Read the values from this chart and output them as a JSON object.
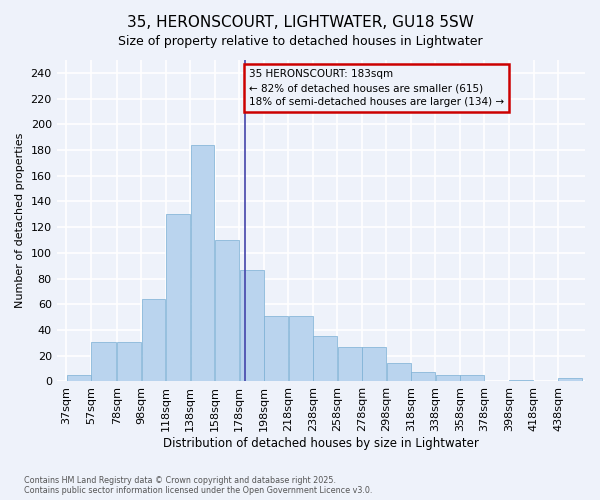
{
  "title": "35, HERONSCOURT, LIGHTWATER, GU18 5SW",
  "subtitle": "Size of property relative to detached houses in Lightwater",
  "xlabel": "Distribution of detached houses by size in Lightwater",
  "ylabel": "Number of detached properties",
  "bin_labels": [
    "37sqm",
    "57sqm",
    "78sqm",
    "98sqm",
    "118sqm",
    "138sqm",
    "158sqm",
    "178sqm",
    "198sqm",
    "218sqm",
    "238sqm",
    "258sqm",
    "278sqm",
    "298sqm",
    "318sqm",
    "338sqm",
    "358sqm",
    "378sqm",
    "398sqm",
    "418sqm",
    "438sqm"
  ],
  "bin_edges": [
    37,
    57,
    78,
    98,
    118,
    138,
    158,
    178,
    198,
    218,
    238,
    258,
    278,
    298,
    318,
    338,
    358,
    378,
    398,
    418,
    438,
    458
  ],
  "values": [
    5,
    31,
    31,
    64,
    130,
    184,
    110,
    87,
    51,
    51,
    35,
    27,
    27,
    14,
    7,
    5,
    5,
    0,
    1,
    0,
    3
  ],
  "bar_color": "#bad4ee",
  "bar_edge_color": "#7bafd4",
  "vline_x": 183,
  "vline_color": "#4444aa",
  "annotation_text": "35 HERONSCOURT: 183sqm\n← 82% of detached houses are smaller (615)\n18% of semi-detached houses are larger (134) →",
  "annotation_box_edgecolor": "#cc0000",
  "ylim": [
    0,
    250
  ],
  "yticks": [
    0,
    20,
    40,
    60,
    80,
    100,
    120,
    140,
    160,
    180,
    200,
    220,
    240
  ],
  "background_color": "#eef2fa",
  "grid_color": "#ffffff",
  "footer_line1": "Contains HM Land Registry data © Crown copyright and database right 2025.",
  "footer_line2": "Contains public sector information licensed under the Open Government Licence v3.0."
}
